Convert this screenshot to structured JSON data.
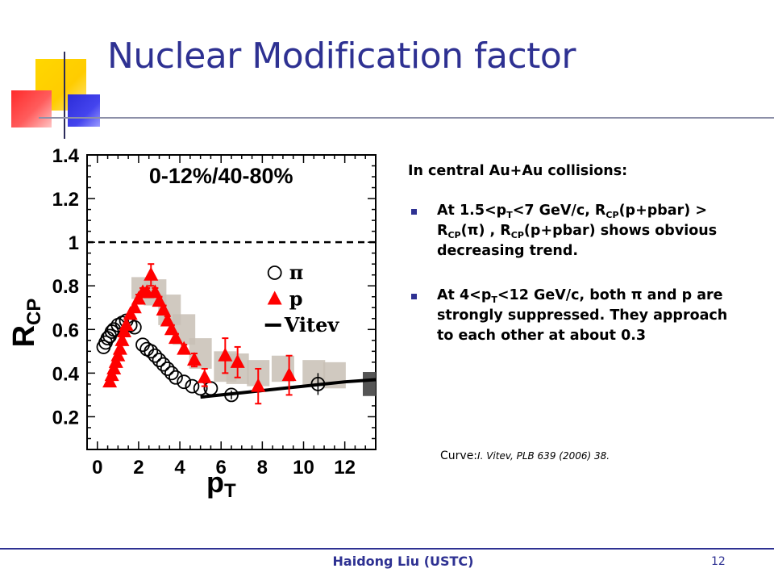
{
  "slide": {
    "title": "Nuclear Modification factor",
    "footer_author": "Haidong Liu  (USTC)",
    "page_number": "12",
    "colors": {
      "title": "#2e3192",
      "accent_yellow": "#ffcc00",
      "accent_red": "#ff3333",
      "accent_blue": "#3333cc",
      "grid_line": "#8c8fa8"
    }
  },
  "text": {
    "intro": "In central Au+Au collisions:",
    "bullet1": {
      "part_a": "At 1.5<p",
      "sub_a": "T",
      "part_b": "<7 GeV/c, R",
      "sub_b": "CP",
      "part_c": "(p+pbar) > R",
      "sub_c": "CP",
      "part_d": "(π) , R",
      "sub_d": "CP",
      "part_e": "(p+pbar) shows obvious decreasing trend."
    },
    "bullet2": {
      "part_a": "At 4<p",
      "sub_a": "T",
      "part_b": "<12 GeV/c,  both π and p are strongly suppressed. They approach to each other at about 0.3"
    },
    "curve_label": "Curve:",
    "curve_ref": "I. Vitev, PLB 639 (2006) 38."
  },
  "chart_data": {
    "type": "scatter",
    "annotation": "0-12%/40-80%",
    "ylabel": "R",
    "ylabel_sub": "CP",
    "xlabel": "p",
    "xlabel_sub": "T",
    "xlim": [
      -0.5,
      13.5
    ],
    "ylim": [
      0.05,
      1.4
    ],
    "x_ticks": [
      "0",
      "2",
      "4",
      "6",
      "8",
      "10",
      "12"
    ],
    "x_tick_values": [
      0,
      2,
      4,
      6,
      8,
      10,
      12
    ],
    "y_ticks": [
      "0.2",
      "0.4",
      "0.6",
      "0.8",
      "1",
      "1.2",
      "1.4"
    ],
    "y_tick_values": [
      0.2,
      0.4,
      0.6,
      0.8,
      1.0,
      1.2,
      1.4
    ],
    "reference_line": 1.0,
    "legend": [
      {
        "label": "π",
        "marker": "circle"
      },
      {
        "label": "p",
        "marker": "triangle"
      },
      {
        "label": "Vitev",
        "marker": "line"
      }
    ],
    "series": [
      {
        "name": "π",
        "marker": "circle",
        "points": [
          [
            0.3,
            0.52
          ],
          [
            0.4,
            0.54
          ],
          [
            0.5,
            0.56
          ],
          [
            0.6,
            0.57
          ],
          [
            0.7,
            0.59
          ],
          [
            0.8,
            0.6
          ],
          [
            1.0,
            0.62
          ],
          [
            1.2,
            0.63
          ],
          [
            1.4,
            0.64
          ],
          [
            1.6,
            0.62
          ],
          [
            1.8,
            0.61
          ],
          [
            2.2,
            0.53
          ],
          [
            2.4,
            0.51
          ],
          [
            2.6,
            0.5
          ],
          [
            2.8,
            0.48
          ],
          [
            3.0,
            0.46
          ],
          [
            3.2,
            0.44
          ],
          [
            3.4,
            0.42
          ],
          [
            3.6,
            0.4
          ],
          [
            3.8,
            0.38
          ],
          [
            4.2,
            0.36
          ],
          [
            4.6,
            0.34
          ],
          [
            5.0,
            0.33
          ],
          [
            5.5,
            0.33
          ],
          [
            6.5,
            0.3
          ],
          [
            10.7,
            0.35
          ]
        ],
        "errors": [
          0.01,
          0.01,
          0.01,
          0.01,
          0.01,
          0.01,
          0.01,
          0.01,
          0.01,
          0.01,
          0.01,
          0.01,
          0.01,
          0.01,
          0.01,
          0.01,
          0.01,
          0.01,
          0.01,
          0.01,
          0.01,
          0.01,
          0.01,
          0.01,
          0.02,
          0.05
        ]
      },
      {
        "name": "p",
        "marker": "triangle",
        "points": [
          [
            0.6,
            0.36
          ],
          [
            0.7,
            0.39
          ],
          [
            0.8,
            0.42
          ],
          [
            0.9,
            0.45
          ],
          [
            1.0,
            0.48
          ],
          [
            1.1,
            0.51
          ],
          [
            1.2,
            0.55
          ],
          [
            1.3,
            0.59
          ],
          [
            1.4,
            0.62
          ],
          [
            1.6,
            0.67
          ],
          [
            1.8,
            0.7
          ],
          [
            2.0,
            0.74
          ],
          [
            2.2,
            0.77
          ],
          [
            2.4,
            0.77
          ],
          [
            2.6,
            0.85
          ],
          [
            2.8,
            0.77
          ],
          [
            3.0,
            0.73
          ],
          [
            3.2,
            0.69
          ],
          [
            3.4,
            0.64
          ],
          [
            3.6,
            0.6
          ],
          [
            3.8,
            0.56
          ],
          [
            4.2,
            0.51
          ],
          [
            4.7,
            0.46
          ],
          [
            5.2,
            0.38
          ],
          [
            6.2,
            0.48
          ],
          [
            6.8,
            0.45
          ],
          [
            7.8,
            0.34
          ],
          [
            9.3,
            0.39
          ]
        ],
        "errors": [
          0.01,
          0.01,
          0.01,
          0.01,
          0.01,
          0.01,
          0.01,
          0.01,
          0.01,
          0.01,
          0.01,
          0.02,
          0.02,
          0.02,
          0.05,
          0.02,
          0.02,
          0.02,
          0.02,
          0.02,
          0.02,
          0.02,
          0.03,
          0.04,
          0.08,
          0.07,
          0.08,
          0.09
        ]
      },
      {
        "name": "Vitev",
        "marker": "line",
        "points": [
          [
            5.0,
            0.29
          ],
          [
            6.0,
            0.3
          ],
          [
            7.0,
            0.31
          ],
          [
            8.0,
            0.32
          ],
          [
            9.0,
            0.33
          ],
          [
            10.0,
            0.34
          ],
          [
            11.0,
            0.35
          ],
          [
            12.0,
            0.36
          ],
          [
            13.5,
            0.37
          ]
        ]
      }
    ],
    "systematic_bands": [
      [
        2.2,
        0.79,
        0.05
      ],
      [
        2.8,
        0.77,
        0.06
      ],
      [
        3.5,
        0.69,
        0.07
      ],
      [
        4.2,
        0.6,
        0.07
      ],
      [
        5.0,
        0.49,
        0.07
      ],
      [
        6.2,
        0.43,
        0.07
      ],
      [
        6.8,
        0.42,
        0.07
      ],
      [
        7.8,
        0.4,
        0.06
      ],
      [
        9.0,
        0.42,
        0.06
      ],
      [
        10.5,
        0.4,
        0.06
      ],
      [
        11.5,
        0.39,
        0.06
      ]
    ],
    "normalization_box": {
      "value": 1.0,
      "relative_error": 0.22
    }
  }
}
